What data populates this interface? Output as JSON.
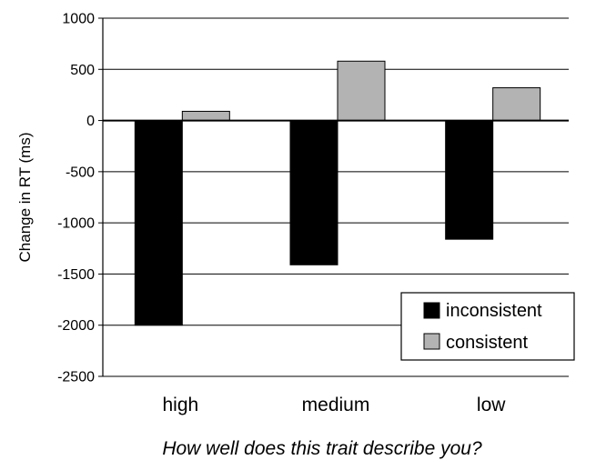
{
  "chart_data": {
    "type": "bar",
    "title": "",
    "xlabel": "How well does this trait describe you?",
    "ylabel": "Change in RT (ms)",
    "categories": [
      "high",
      "medium",
      "low"
    ],
    "series": [
      {
        "name": "inconsistent",
        "color": "#000000",
        "values": [
          -2000,
          -1410,
          -1160
        ]
      },
      {
        "name": "consistent",
        "color": "#b3b3b3",
        "values": [
          90,
          580,
          320
        ]
      }
    ],
    "ylim": [
      -2500,
      1000
    ],
    "yticks": [
      1000,
      500,
      0,
      -500,
      -1000,
      -1500,
      -2000,
      -2500
    ],
    "ytick_labels": [
      "1000",
      "500",
      "0",
      "-500",
      "-1000",
      "-1500",
      "-2000",
      "-2500"
    ],
    "grid": true,
    "legend_position": "bottom-right"
  }
}
